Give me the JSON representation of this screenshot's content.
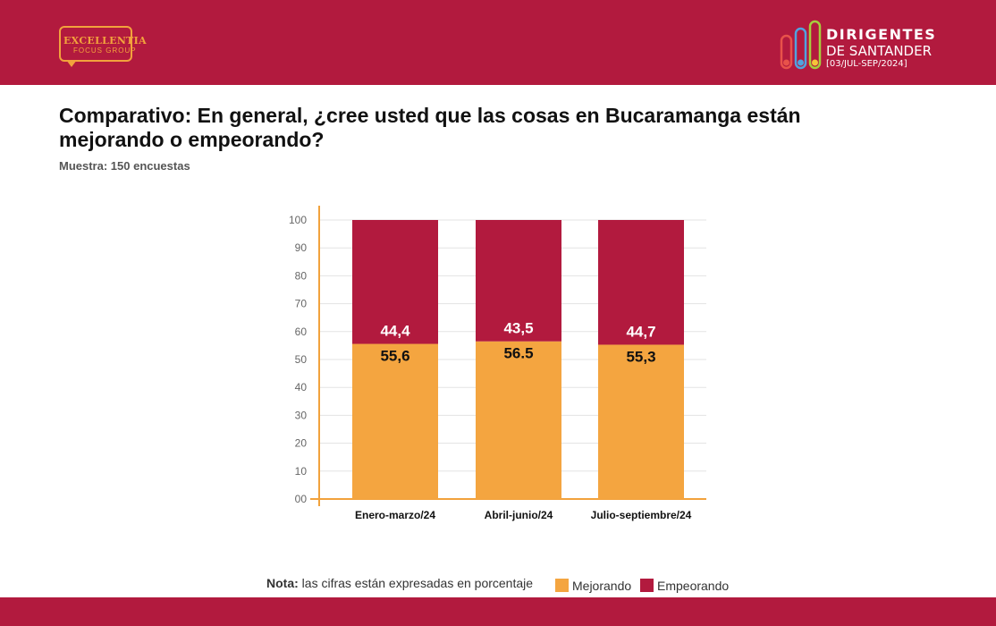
{
  "header": {
    "brand_left_line1": "EXCELLENTIA",
    "brand_left_line2": "FOCUS GROUP",
    "brand_right_line1": "DIRIGENTES",
    "brand_right_line2": "DE SANTANDER",
    "brand_right_line3": "[03/JUL-SEP/2024]"
  },
  "colors": {
    "brand": "#b21a3e",
    "mejorando": "#f4a540",
    "empeorando": "#b21a3e",
    "axis": "#f2a23c"
  },
  "page": {
    "title": "Comparativo: En general, ¿cree usted que las cosas en Bucaramanga están mejorando o empeorando?",
    "subtitle": "Muestra: 150 encuestas"
  },
  "legend": {
    "note_bold": "Nota:",
    "note_text": "las cifras están expresadas en porcentaje",
    "items": [
      "Mejorando",
      "Empeorando"
    ]
  },
  "chart_data": {
    "type": "bar",
    "stacked": true,
    "categories": [
      "Enero-marzo/24",
      "Abril-junio/24",
      "Julio-septiembre/24"
    ],
    "series": [
      {
        "name": "Mejorando",
        "values": [
          55.6,
          56.5,
          55.3
        ],
        "labels": [
          "55,6",
          "56.5",
          "55,3"
        ]
      },
      {
        "name": "Empeorando",
        "values": [
          44.4,
          43.5,
          44.7
        ],
        "labels": [
          "44,4",
          "43,5",
          "44,7"
        ]
      }
    ],
    "ylim": [
      0,
      100
    ],
    "yticks": [
      "00",
      "10",
      "20",
      "30",
      "40",
      "50",
      "60",
      "70",
      "80",
      "90",
      "100"
    ],
    "grid": true,
    "legend_position": "bottom"
  }
}
